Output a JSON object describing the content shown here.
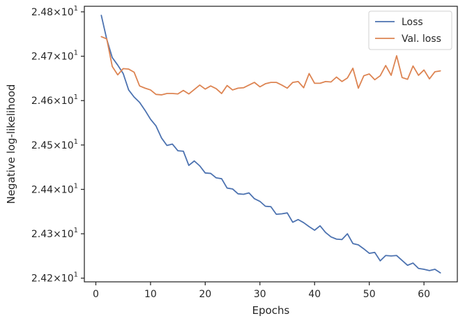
{
  "chart_data": {
    "type": "line",
    "xlabel": "Epochs",
    "ylabel": "Negative log-likelihood",
    "xlim": [
      -2.1,
      66.1
    ],
    "ylim": [
      24.1917,
      24.8125
    ],
    "x_ticks": [
      0,
      10,
      20,
      30,
      40,
      50,
      60
    ],
    "x_tick_labels": [
      "0",
      "10",
      "20",
      "30",
      "40",
      "50",
      "60"
    ],
    "y_ticks": [
      24.2,
      24.3,
      24.4,
      24.5,
      24.6,
      24.7,
      24.8
    ],
    "y_tick_labels": [
      {
        "mantissa": "2.42",
        "times": "×",
        "base": "10",
        "exp": "1"
      },
      {
        "mantissa": "2.43",
        "times": "×",
        "base": "10",
        "exp": "1"
      },
      {
        "mantissa": "2.44",
        "times": "×",
        "base": "10",
        "exp": "1"
      },
      {
        "mantissa": "2.45",
        "times": "×",
        "base": "10",
        "exp": "1"
      },
      {
        "mantissa": "2.46",
        "times": "×",
        "base": "10",
        "exp": "1"
      },
      {
        "mantissa": "2.47",
        "times": "×",
        "base": "10",
        "exp": "1"
      },
      {
        "mantissa": "2.48",
        "times": "×",
        "base": "10",
        "exp": "1"
      }
    ],
    "grid": false,
    "legend_position": "top-right",
    "x": [
      1,
      2,
      3,
      4,
      5,
      6,
      7,
      8,
      9,
      10,
      11,
      12,
      13,
      14,
      15,
      16,
      17,
      18,
      19,
      20,
      21,
      22,
      23,
      24,
      25,
      26,
      27,
      28,
      29,
      30,
      31,
      32,
      33,
      34,
      35,
      36,
      37,
      38,
      39,
      40,
      41,
      42,
      43,
      44,
      45,
      46,
      47,
      48,
      49,
      50,
      51,
      52,
      53,
      54,
      55,
      56,
      57,
      58,
      59,
      60,
      61,
      62,
      63
    ],
    "series": [
      {
        "name": "Loss",
        "color": "#4c72b0",
        "values": [
          24.792,
          24.738,
          24.697,
          24.68,
          24.661,
          24.624,
          24.608,
          24.596,
          24.578,
          24.558,
          24.543,
          24.516,
          24.499,
          24.502,
          24.487,
          24.486,
          24.454,
          24.464,
          24.453,
          24.437,
          24.436,
          24.426,
          24.424,
          24.403,
          24.401,
          24.39,
          24.389,
          24.392,
          24.379,
          24.373,
          24.362,
          24.361,
          24.344,
          24.345,
          24.347,
          24.326,
          24.332,
          24.325,
          24.316,
          24.308,
          24.318,
          24.303,
          24.293,
          24.288,
          24.287,
          24.3,
          24.278,
          24.275,
          24.266,
          24.256,
          24.258,
          24.239,
          24.251,
          24.25,
          24.251,
          24.24,
          24.229,
          24.234,
          24.222,
          24.22,
          24.217,
          24.22,
          24.212
        ]
      },
      {
        "name": "Val. loss",
        "color": "#dd8452",
        "values": [
          24.744,
          24.739,
          24.677,
          24.658,
          24.672,
          24.671,
          24.664,
          24.633,
          24.628,
          24.624,
          24.614,
          24.613,
          24.616,
          24.616,
          24.615,
          24.623,
          24.615,
          24.625,
          24.635,
          24.626,
          24.633,
          24.627,
          24.616,
          24.634,
          24.624,
          24.628,
          24.629,
          24.635,
          24.641,
          24.631,
          24.638,
          24.641,
          24.641,
          24.635,
          24.628,
          24.641,
          24.643,
          24.629,
          24.661,
          24.639,
          24.639,
          24.643,
          24.642,
          24.653,
          24.643,
          24.651,
          24.673,
          24.628,
          24.656,
          24.66,
          24.647,
          24.656,
          24.679,
          24.657,
          24.701,
          24.652,
          24.648,
          24.678,
          24.657,
          24.669,
          24.649,
          24.665,
          24.667
        ]
      }
    ]
  }
}
